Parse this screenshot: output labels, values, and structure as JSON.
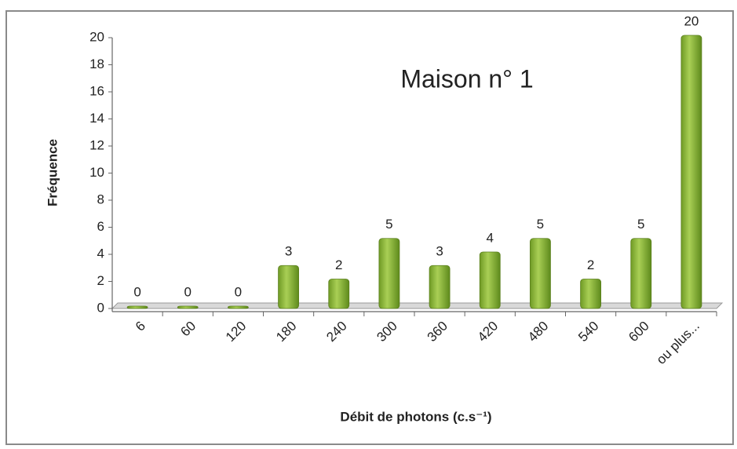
{
  "chart_data": {
    "type": "bar",
    "title": "Maison n° 1",
    "y_label": "Fréquence",
    "x_label": "Débit de photons (c.s⁻¹)",
    "categories": [
      "6",
      "60",
      "120",
      "180",
      "240",
      "300",
      "360",
      "420",
      "480",
      "540",
      "600",
      "ou plus..."
    ],
    "values": [
      0,
      0,
      0,
      3,
      2,
      5,
      3,
      4,
      5,
      2,
      5,
      20
    ],
    "color": "#8db33a",
    "ylim": [
      0,
      20
    ],
    "yticks": [
      0,
      2,
      4,
      6,
      8,
      10,
      12,
      14,
      16,
      18,
      20
    ],
    "grid": false
  }
}
